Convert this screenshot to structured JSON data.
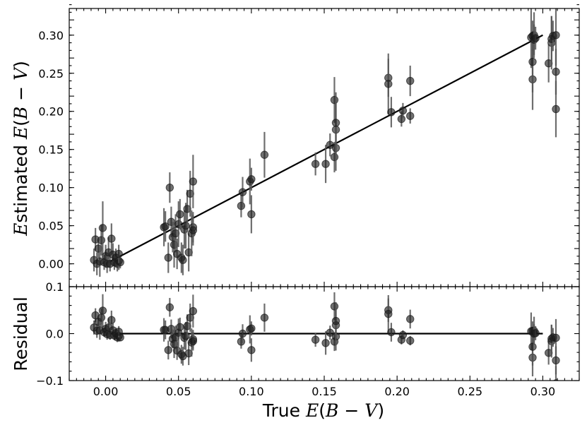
{
  "chart_data": [
    {
      "panel": "main",
      "type": "scatter",
      "ylabel": "Estimated E(B − V)",
      "xlabel": "",
      "xlim": [
        -0.025,
        0.325
      ],
      "ylim": [
        -0.03,
        0.335
      ],
      "yticks": [
        "0.00",
        "0.05",
        "0.10",
        "0.15",
        "0.20",
        "0.25",
        "0.30"
      ],
      "grid": false,
      "fit_line": {
        "x": [
          0.0,
          0.3
        ],
        "y": [
          0.0,
          0.3
        ]
      },
      "points": [
        {
          "x": -0.008,
          "y": 0.005,
          "err": 0.015
        },
        {
          "x": -0.007,
          "y": 0.032,
          "err": 0.015
        },
        {
          "x": -0.006,
          "y": 0.0,
          "err": 0.015
        },
        {
          "x": -0.005,
          "y": 0.02,
          "err": 0.012
        },
        {
          "x": -0.004,
          "y": 0.003,
          "err": 0.02
        },
        {
          "x": -0.003,
          "y": 0.031,
          "err": 0.02
        },
        {
          "x": -0.002,
          "y": 0.047,
          "err": 0.035
        },
        {
          "x": -0.001,
          "y": 0.002,
          "err": 0.01
        },
        {
          "x": 0.0,
          "y": 0.01,
          "err": 0.015
        },
        {
          "x": 0.001,
          "y": 0.0,
          "err": 0.012
        },
        {
          "x": 0.002,
          "y": 0.015,
          "err": 0.02
        },
        {
          "x": 0.003,
          "y": 0.0,
          "err": 0.01
        },
        {
          "x": 0.004,
          "y": 0.033,
          "err": 0.02
        },
        {
          "x": 0.005,
          "y": 0.012,
          "err": 0.015
        },
        {
          "x": 0.006,
          "y": 0.002,
          "err": 0.01
        },
        {
          "x": 0.007,
          "y": 0.008,
          "err": 0.012
        },
        {
          "x": 0.008,
          "y": 0.0,
          "err": 0.01
        },
        {
          "x": 0.009,
          "y": 0.004,
          "err": 0.012
        },
        {
          "x": 0.01,
          "y": 0.002,
          "err": 0.008
        },
        {
          "x": 0.009,
          "y": 0.013,
          "err": 0.012
        },
        {
          "x": 0.04,
          "y": 0.048,
          "err": 0.025
        },
        {
          "x": 0.041,
          "y": 0.049,
          "err": 0.02
        },
        {
          "x": 0.043,
          "y": 0.008,
          "err": 0.02
        },
        {
          "x": 0.044,
          "y": 0.1,
          "err": 0.02
        },
        {
          "x": 0.045,
          "y": 0.055,
          "err": 0.02
        },
        {
          "x": 0.046,
          "y": 0.035,
          "err": 0.02
        },
        {
          "x": 0.047,
          "y": 0.025,
          "err": 0.03
        },
        {
          "x": 0.048,
          "y": 0.04,
          "err": 0.025
        },
        {
          "x": 0.049,
          "y": 0.013,
          "err": 0.02
        },
        {
          "x": 0.05,
          "y": 0.052,
          "err": 0.03
        },
        {
          "x": 0.051,
          "y": 0.065,
          "err": 0.02
        },
        {
          "x": 0.052,
          "y": 0.008,
          "err": 0.02
        },
        {
          "x": 0.053,
          "y": 0.005,
          "err": 0.02
        },
        {
          "x": 0.054,
          "y": 0.045,
          "err": 0.025
        },
        {
          "x": 0.055,
          "y": 0.05,
          "err": 0.03
        },
        {
          "x": 0.056,
          "y": 0.072,
          "err": 0.025
        },
        {
          "x": 0.057,
          "y": 0.015,
          "err": 0.025
        },
        {
          "x": 0.058,
          "y": 0.092,
          "err": 0.03
        },
        {
          "x": 0.059,
          "y": 0.04,
          "err": 0.03
        },
        {
          "x": 0.06,
          "y": 0.108,
          "err": 0.035
        },
        {
          "x": 0.06,
          "y": 0.048,
          "err": 0.02
        },
        {
          "x": 0.06,
          "y": 0.044,
          "err": 0.02
        },
        {
          "x": 0.093,
          "y": 0.076,
          "err": 0.015
        },
        {
          "x": 0.094,
          "y": 0.094,
          "err": 0.02
        },
        {
          "x": 0.099,
          "y": 0.108,
          "err": 0.03
        },
        {
          "x": 0.1,
          "y": 0.111,
          "err": 0.015
        },
        {
          "x": 0.1,
          "y": 0.065,
          "err": 0.025
        },
        {
          "x": 0.109,
          "y": 0.143,
          "err": 0.03
        },
        {
          "x": 0.144,
          "y": 0.131,
          "err": 0.015
        },
        {
          "x": 0.151,
          "y": 0.131,
          "err": 0.025
        },
        {
          "x": 0.154,
          "y": 0.156,
          "err": 0.015
        },
        {
          "x": 0.157,
          "y": 0.215,
          "err": 0.03
        },
        {
          "x": 0.157,
          "y": 0.14,
          "err": 0.02
        },
        {
          "x": 0.158,
          "y": 0.152,
          "err": 0.03
        },
        {
          "x": 0.158,
          "y": 0.176,
          "err": 0.04
        },
        {
          "x": 0.158,
          "y": 0.185,
          "err": 0.04
        },
        {
          "x": 0.194,
          "y": 0.244,
          "err": 0.025
        },
        {
          "x": 0.194,
          "y": 0.236,
          "err": 0.04
        },
        {
          "x": 0.196,
          "y": 0.199,
          "err": 0.02
        },
        {
          "x": 0.203,
          "y": 0.19,
          "err": 0.01
        },
        {
          "x": 0.204,
          "y": 0.201,
          "err": 0.01
        },
        {
          "x": 0.209,
          "y": 0.194,
          "err": 0.01
        },
        {
          "x": 0.209,
          "y": 0.24,
          "err": 0.02
        },
        {
          "x": 0.292,
          "y": 0.297,
          "err": 0.04
        },
        {
          "x": 0.293,
          "y": 0.242,
          "err": 0.04
        },
        {
          "x": 0.293,
          "y": 0.265,
          "err": 0.04
        },
        {
          "x": 0.293,
          "y": 0.299,
          "err": 0.02
        },
        {
          "x": 0.294,
          "y": 0.3,
          "err": 0.03
        },
        {
          "x": 0.294,
          "y": 0.294,
          "err": 0.02
        },
        {
          "x": 0.295,
          "y": 0.296,
          "err": 0.015
        },
        {
          "x": 0.304,
          "y": 0.263,
          "err": 0.025
        },
        {
          "x": 0.306,
          "y": 0.29,
          "err": 0.035
        },
        {
          "x": 0.306,
          "y": 0.295,
          "err": 0.03
        },
        {
          "x": 0.307,
          "y": 0.299,
          "err": 0.02
        },
        {
          "x": 0.309,
          "y": 0.3,
          "err": 0.04
        },
        {
          "x": 0.309,
          "y": 0.252,
          "err": 0.03
        },
        {
          "x": 0.309,
          "y": 0.203,
          "err": 0.037
        }
      ]
    },
    {
      "panel": "residual",
      "type": "scatter",
      "ylabel": "Residual",
      "xlabel": "True E(B − V)",
      "xlim": [
        -0.025,
        0.325
      ],
      "ylim": [
        -0.1,
        0.1
      ],
      "xticks": [
        "0.00",
        "0.05",
        "0.10",
        "0.15",
        "0.20",
        "0.25",
        "0.30"
      ],
      "yticks": [
        "−0.1",
        "0.0",
        "0.1"
      ],
      "grid": false,
      "zero_line": {
        "x": [
          0.0,
          0.3
        ],
        "y": [
          0.0,
          0.0
        ]
      }
    }
  ],
  "colors": {
    "marker": "#1a1a1a",
    "errorbar": "#555555",
    "line": "#000000",
    "axes": "#000000"
  }
}
